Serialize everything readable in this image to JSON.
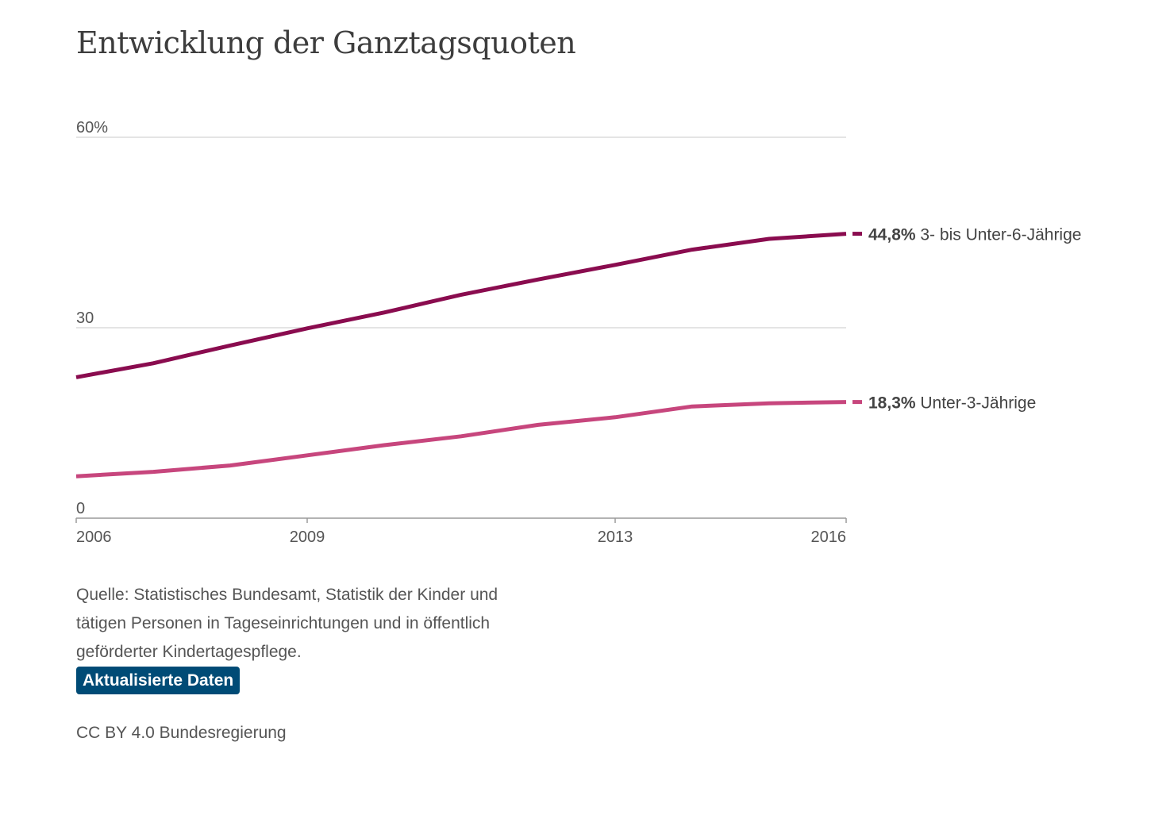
{
  "title": "Entwicklung der Ganztagsquoten",
  "source_text": "Quelle: Statistisches Bundesamt, Statistik der Kinder und tätigen Personen in Tageseinrichtungen und in öffentlich geförderter Kindertagespflege.",
  "badge_label": "Aktualisierte Daten",
  "license_text": "CC BY 4.0 Bundesregierung",
  "colors": {
    "series_3_6": "#8a0c4f",
    "series_u3": "#c7467d",
    "badge": "#004b76"
  },
  "chart_data": {
    "type": "line",
    "title": "Entwicklung der Ganztagsquoten",
    "xlabel": "",
    "ylabel": "",
    "ylim": [
      0,
      60
    ],
    "xlim": [
      2006,
      2016
    ],
    "y_ticks": [
      {
        "value": 0,
        "label": "0"
      },
      {
        "value": 30,
        "label": "30"
      },
      {
        "value": 60,
        "label": "60%"
      }
    ],
    "x_ticks": [
      {
        "value": 2006,
        "label": "2006"
      },
      {
        "value": 2009,
        "label": "2009"
      },
      {
        "value": 2013,
        "label": "2013"
      },
      {
        "value": 2016,
        "label": "2016"
      }
    ],
    "grid": true,
    "x": [
      2006,
      2007,
      2008,
      2009,
      2010,
      2011,
      2012,
      2013,
      2014,
      2015,
      2016
    ],
    "series": [
      {
        "name": "3- bis Unter-6-Jährige",
        "end_label": "44,8%",
        "color": "#8a0c4f",
        "values": [
          22.2,
          24.4,
          27.2,
          29.9,
          32.4,
          35.2,
          37.6,
          39.9,
          42.3,
          44.0,
          44.8
        ]
      },
      {
        "name": "Unter-3-Jährige",
        "end_label": "18,3%",
        "color": "#c7467d",
        "values": [
          6.6,
          7.3,
          8.3,
          9.9,
          11.5,
          12.9,
          14.7,
          15.9,
          17.6,
          18.1,
          18.3
        ]
      }
    ]
  }
}
